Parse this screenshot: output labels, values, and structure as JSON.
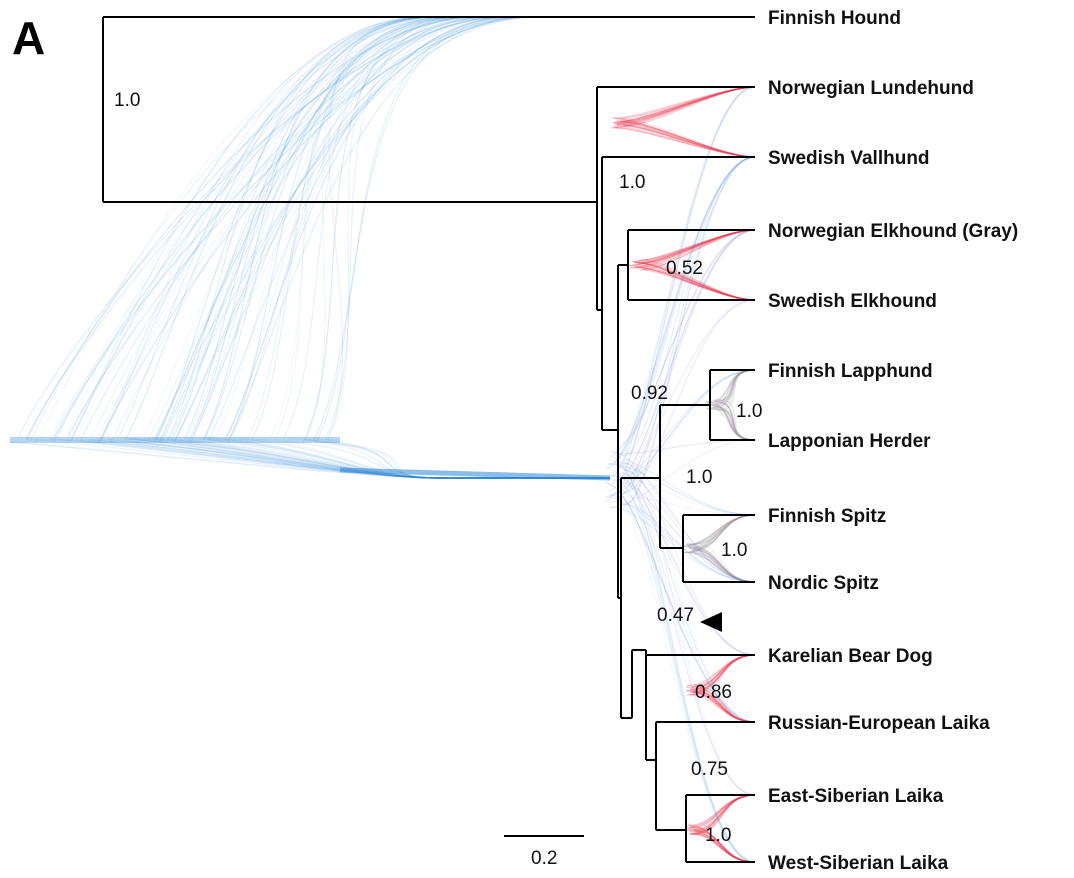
{
  "panel_label": "A",
  "taxa": [
    "Finnish Hound",
    "Norwegian Lundehund",
    "Swedish Vallhund",
    "Norwegian Elkhound (Gray)",
    "Swedish Elkhound",
    "Finnish Lapphund",
    "Lapponian Herder",
    "Finnish Spitz",
    "Nordic Spitz",
    "Karelian Bear Dog",
    "Russian-European Laika",
    "East-Siberian Laika",
    "West-Siberian Laika"
  ],
  "support_values": [
    "1.0",
    "1.0",
    "0.52",
    "0.92",
    "1.0",
    "1.0",
    "1.0",
    "0.47",
    "0.86",
    "0.75",
    "1.0"
  ],
  "scale_bar": {
    "label": "0.2",
    "length": 0.2
  },
  "colors": {
    "cloud_blue": "#2a86d6",
    "cloud_red": "#e8344e",
    "cloud_purple": "#6a5acd",
    "cloud_grey": "#9a8f9a",
    "branch": "#000000"
  }
}
